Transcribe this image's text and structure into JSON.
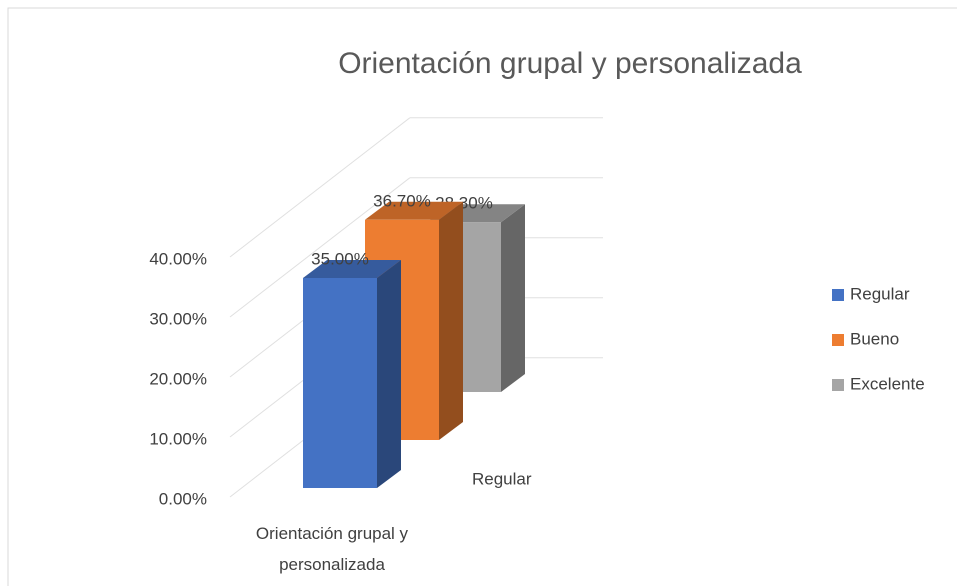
{
  "chart_data": {
    "type": "bar3d",
    "title": "Orientación grupal y personalizada",
    "categories": [
      "Orientación grupal y personalizada"
    ],
    "series": [
      {
        "name": "Regular",
        "color": "#4472c4",
        "values": [
          35.0
        ],
        "value_labels": [
          "35.00%"
        ]
      },
      {
        "name": "Bueno",
        "color": "#ed7d31",
        "values": [
          36.7
        ],
        "value_labels": [
          "36.70%"
        ]
      },
      {
        "name": "Excelente",
        "color": "#a5a5a5",
        "values": [
          28.3
        ],
        "value_labels": [
          "28.30%"
        ]
      }
    ],
    "ylim": [
      0,
      40
    ],
    "yticks": [
      {
        "value": 0,
        "label": "0.00%"
      },
      {
        "value": 10,
        "label": "10.00%"
      },
      {
        "value": 20,
        "label": "20.00%"
      },
      {
        "value": 30,
        "label": "30.00%"
      },
      {
        "value": 40,
        "label": "40.00%"
      }
    ],
    "grid": true,
    "legend": "right"
  }
}
